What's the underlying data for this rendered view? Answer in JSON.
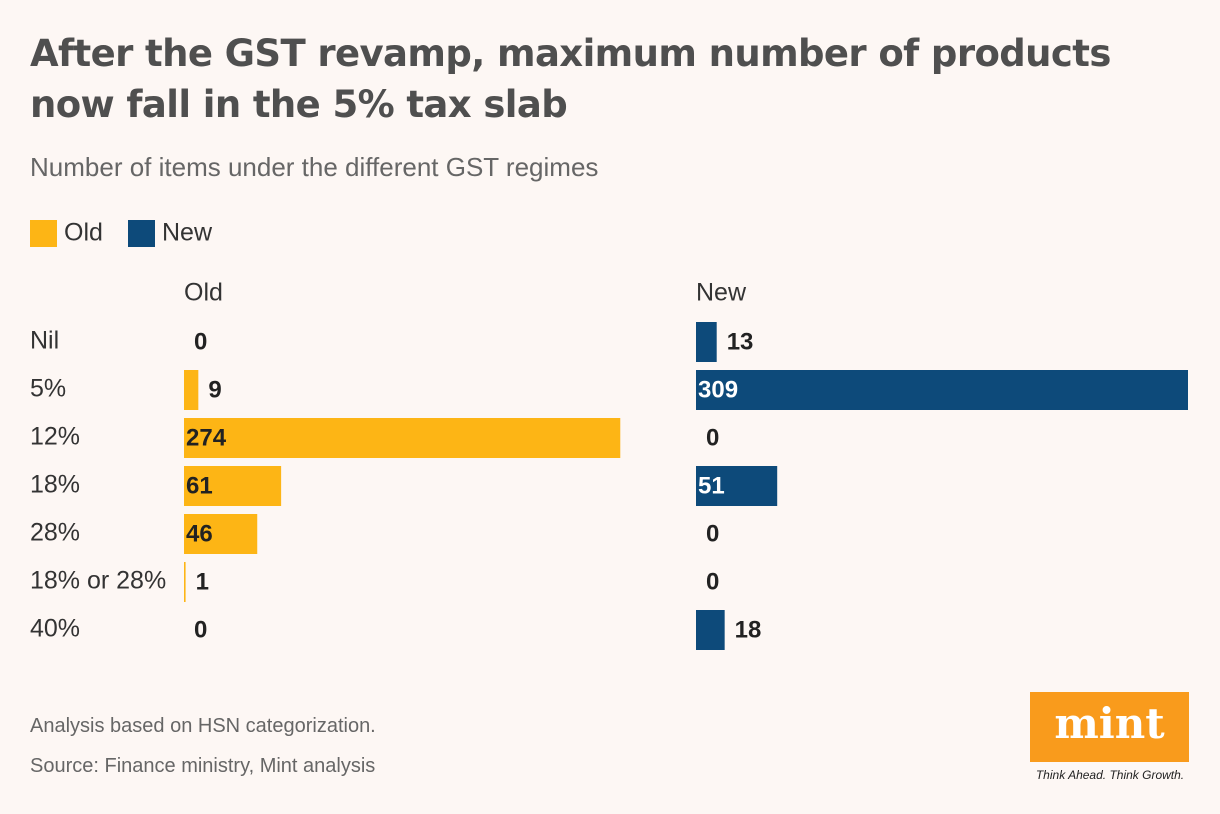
{
  "chart_data": {
    "type": "bar",
    "orientation": "horizontal",
    "title": "After the GST revamp, maximum number of products now fall in the 5% tax slab",
    "subtitle": "Number of items under the different GST regimes",
    "categories": [
      "Nil",
      "5%",
      "12%",
      "18%",
      "28%",
      "18% or 28%",
      "40%"
    ],
    "series": [
      {
        "name": "Old",
        "color": "#fdb515",
        "values": [
          0,
          9,
          274,
          61,
          46,
          1,
          0
        ]
      },
      {
        "name": "New",
        "color": "#0d4a7a",
        "values": [
          13,
          309,
          0,
          51,
          0,
          0,
          18
        ]
      }
    ],
    "note": "Analysis based on HSN categorization.",
    "source": "Source: Finance ministry, Mint analysis"
  },
  "logo": {
    "name": "mint",
    "tagline": "Think Ahead. Think Growth."
  }
}
